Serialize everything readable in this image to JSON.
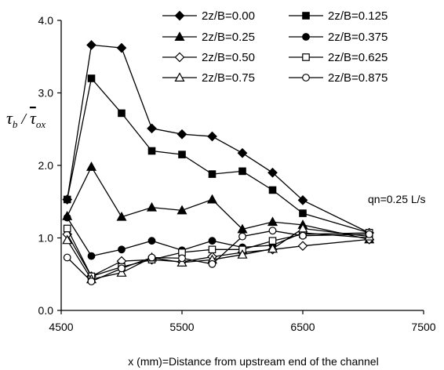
{
  "chart_data": {
    "type": "line",
    "xlabel": "x (mm)=Distance from upstream end of the channel",
    "ylabel": {
      "base": "τ",
      "sub": "b",
      "sep": " / ",
      "base2": "τ",
      "sub2": "ox"
    },
    "annotation": "qn=0.25 L/s",
    "xlim": [
      4500,
      7500
    ],
    "ylim": [
      0,
      4
    ],
    "x_ticks": [
      "4500",
      "5500",
      "6500",
      "7500"
    ],
    "y_ticks": [
      "0.0",
      "1.0",
      "2.0",
      "3.0",
      "4.0"
    ],
    "legend_position": "top-right",
    "x": [
      4550,
      4750,
      5000,
      5250,
      5500,
      5750,
      6000,
      6250,
      6500,
      7050
    ],
    "series": [
      {
        "name": "2z/B=0.00",
        "marker": "diamond-filled",
        "values": [
          1.53,
          3.66,
          3.62,
          2.51,
          2.43,
          2.4,
          2.17,
          1.9,
          1.52,
          1.07
        ]
      },
      {
        "name": "2z/B=0.125",
        "marker": "square-filled",
        "values": [
          1.53,
          3.2,
          2.72,
          2.2,
          2.15,
          1.88,
          1.92,
          1.66,
          1.34,
          1.07
        ]
      },
      {
        "name": "2z/B=0.25",
        "marker": "triangle-filled",
        "values": [
          1.3,
          1.98,
          1.29,
          1.42,
          1.38,
          1.53,
          1.12,
          1.22,
          1.18,
          0.98
        ]
      },
      {
        "name": "2z/B=0.375",
        "marker": "circle-filled",
        "values": [
          1.28,
          0.75,
          0.84,
          0.96,
          0.83,
          0.96,
          0.87,
          0.9,
          1.07,
          1.0
        ]
      },
      {
        "name": "2z/B=0.50",
        "marker": "diamond-open",
        "values": [
          1.05,
          0.47,
          0.68,
          0.7,
          0.67,
          0.74,
          0.8,
          0.84,
          0.89,
          0.98
        ]
      },
      {
        "name": "2z/B=0.625",
        "marker": "square-open",
        "values": [
          1.13,
          0.47,
          0.6,
          0.7,
          0.8,
          0.84,
          0.84,
          0.96,
          1.05,
          1.07
        ]
      },
      {
        "name": "2z/B=0.75",
        "marker": "triangle-open",
        "values": [
          0.97,
          0.43,
          0.52,
          0.73,
          0.66,
          0.7,
          0.77,
          0.85,
          1.13,
          1.02
        ]
      },
      {
        "name": "2z/B=0.875",
        "marker": "circle-open",
        "values": [
          0.73,
          0.4,
          0.58,
          0.73,
          0.72,
          0.64,
          1.02,
          1.1,
          1.03,
          1.05
        ]
      }
    ]
  }
}
